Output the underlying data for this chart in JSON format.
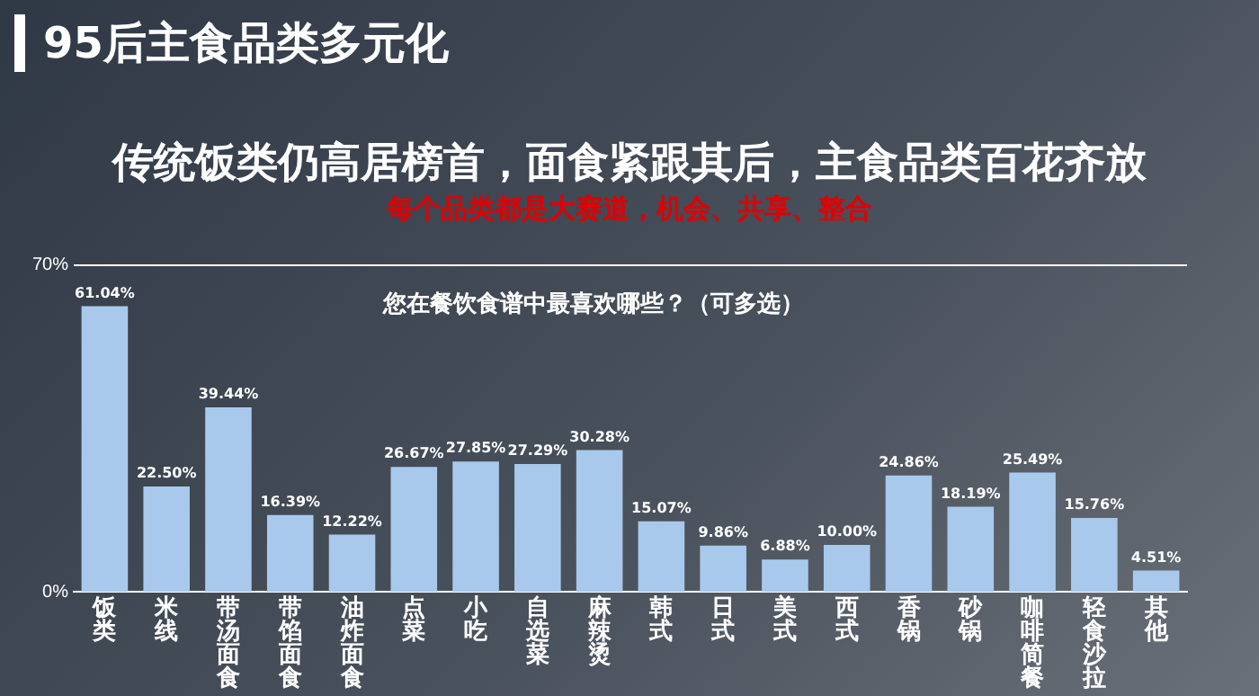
{
  "chart_data": {
    "type": "bar",
    "title": "传统饭类仍高居榜首，面食紧跟其后，主食品类百花齐放",
    "subtitle": "每个品类都是大赛道，机会、共享、整合",
    "annotations": [
      "95后主食品类多元化",
      "您在餐饮食谱中最喜欢哪些？（可多选）"
    ],
    "categories": [
      "饭类",
      "米线",
      "带汤面食",
      "带馅面食",
      "油炸面食",
      "点菜",
      "小吃",
      "自选菜",
      "麻辣烫",
      "韩式",
      "日式",
      "美式",
      "西式",
      "香锅",
      "砂锅",
      "咖啡简餐",
      "轻食沙拉",
      "其他"
    ],
    "values": [
      61.04,
      22.5,
      39.44,
      16.39,
      12.22,
      26.67,
      27.85,
      27.29,
      30.28,
      15.07,
      9.86,
      6.88,
      10.0,
      24.86,
      18.19,
      25.49,
      15.76,
      4.51
    ],
    "value_labels": [
      "61.04%",
      "22.50%",
      "39.44%",
      "16.39%",
      "12.22%",
      "26.67%",
      "27.85%",
      "27.29%",
      "30.28%",
      "15.07%",
      "9.86%",
      "6.88%",
      "10.00%",
      "24.86%",
      "18.19%",
      "25.49%",
      "15.76%",
      "4.51%"
    ],
    "color": "#a9c9ec",
    "ylim": [
      0,
      70
    ],
    "yticks": [
      {
        "value": 0,
        "label": "0%"
      },
      {
        "value": 70,
        "label": "70%"
      }
    ],
    "legend": false
  }
}
